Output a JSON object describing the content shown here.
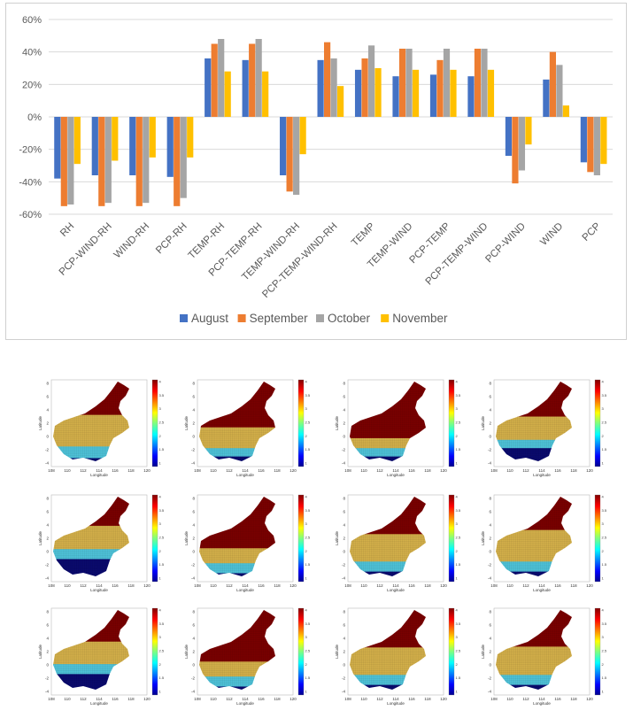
{
  "chart_data": {
    "type": "bar",
    "categories": [
      "RH",
      "PCP-WIND-RH",
      "WIND-RH",
      "PCP-RH",
      "TEMP-RH",
      "PCP-TEMP-RH",
      "TEMP-WIND-RH",
      "PCP-TEMP-WIND-RH",
      "TEMP",
      "TEMP-WIND",
      "PCP-TEMP",
      "PCP-TEMP-WIND",
      "PCP-WIND",
      "WIND",
      "PCP"
    ],
    "series": [
      {
        "name": "August",
        "color": "#4472c4",
        "values": [
          -38,
          -36,
          -36,
          -37,
          36,
          35,
          -36,
          35,
          29,
          25,
          26,
          25,
          -24,
          23,
          -28
        ]
      },
      {
        "name": "September",
        "color": "#ed7d31",
        "values": [
          -55,
          -55,
          -55,
          -55,
          45,
          45,
          -46,
          46,
          36,
          42,
          35,
          42,
          -41,
          40,
          -34
        ]
      },
      {
        "name": "October",
        "color": "#a5a5a5",
        "values": [
          -54,
          -53,
          -53,
          -50,
          48,
          48,
          -48,
          36,
          44,
          42,
          42,
          42,
          -33,
          32,
          -36
        ]
      },
      {
        "name": "November",
        "color": "#ffc000",
        "values": [
          -29,
          -27,
          -25,
          -25,
          28,
          28,
          -23,
          19,
          30,
          29,
          29,
          29,
          -17,
          7,
          -29
        ]
      }
    ],
    "y_ticks": [
      "60%",
      "40%",
      "20%",
      "0%",
      "-20%",
      "-40%",
      "-60%"
    ],
    "ylim": [
      -60,
      60
    ],
    "grid": true,
    "legend_position": "bottom"
  },
  "maps": {
    "rows": 3,
    "cols": 4,
    "x_tick_labels": [
      "108",
      "110",
      "112",
      "114",
      "116",
      "118",
      "120"
    ],
    "y_tick_labels": [
      "8",
      "6",
      "4",
      "2",
      "0",
      "-2",
      "-4"
    ],
    "xlabel": "Longitude",
    "ylabel": "Latitude",
    "colorbar_labels": [
      "4",
      "3.5",
      "3",
      "2.5",
      "2",
      "1.5",
      "1"
    ],
    "classes": [
      {
        "level": 4,
        "color": "#7a0000"
      },
      {
        "level": 3,
        "color": "#d4b04a"
      },
      {
        "level": 2,
        "color": "#4fc3d9"
      },
      {
        "level": 1,
        "color": "#0a0a6e"
      }
    ],
    "panels": [
      {
        "level4_fraction": 0.4,
        "level3_fraction": 0.38,
        "level2_fraction": 0.14
      },
      {
        "level4_fraction": 0.55,
        "level3_fraction": 0.25,
        "level2_fraction": 0.1
      },
      {
        "level4_fraction": 0.68,
        "level3_fraction": 0.12,
        "level2_fraction": 0.1
      },
      {
        "level4_fraction": 0.42,
        "level3_fraction": 0.28,
        "level2_fraction": 0.1
      },
      {
        "level4_fraction": 0.35,
        "level3_fraction": 0.28,
        "level2_fraction": 0.12
      },
      {
        "level4_fraction": 0.62,
        "level3_fraction": 0.18,
        "level2_fraction": 0.12
      },
      {
        "level4_fraction": 0.45,
        "level3_fraction": 0.33,
        "level2_fraction": 0.12
      },
      {
        "level4_fraction": 0.4,
        "level3_fraction": 0.38,
        "level2_fraction": 0.12
      },
      {
        "level4_fraction": 0.38,
        "level3_fraction": 0.27,
        "level2_fraction": 0.12
      },
      {
        "level4_fraction": 0.62,
        "level3_fraction": 0.18,
        "level2_fraction": 0.12
      },
      {
        "level4_fraction": 0.45,
        "level3_fraction": 0.33,
        "level2_fraction": 0.12
      },
      {
        "level4_fraction": 0.44,
        "level3_fraction": 0.34,
        "level2_fraction": 0.12
      }
    ]
  }
}
